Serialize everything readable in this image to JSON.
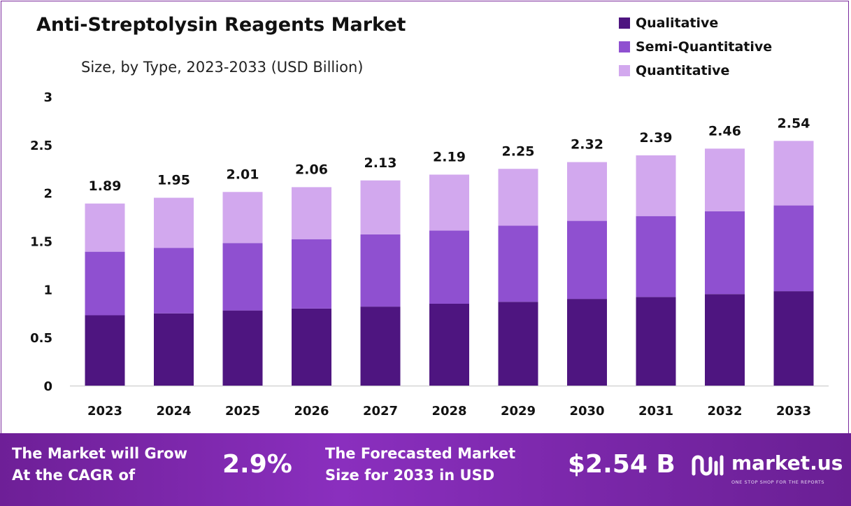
{
  "header": {
    "title": "Anti-Streptolysin Reagents Market",
    "subtitle": "Size, by Type, 2023-2033 (USD Billion)"
  },
  "legend": [
    {
      "label": "Qualitative",
      "color": "#4e1580"
    },
    {
      "label": "Semi-Quantitative",
      "color": "#8f50d0"
    },
    {
      "label": "Quantitative",
      "color": "#d2a8ee"
    }
  ],
  "chart_data": {
    "type": "bar",
    "stacked": true,
    "title": "Anti-Streptolysin Reagents Market",
    "subtitle": "Size, by Type, 2023-2033 (USD Billion)",
    "categories": [
      "2023",
      "2024",
      "2025",
      "2026",
      "2027",
      "2028",
      "2029",
      "2030",
      "2031",
      "2032",
      "2033"
    ],
    "series": [
      {
        "name": "Qualitative",
        "values": [
          0.73,
          0.75,
          0.78,
          0.8,
          0.82,
          0.85,
          0.87,
          0.9,
          0.92,
          0.95,
          0.98
        ]
      },
      {
        "name": "Semi-Quantitative",
        "values": [
          0.66,
          0.68,
          0.7,
          0.72,
          0.75,
          0.76,
          0.79,
          0.81,
          0.84,
          0.86,
          0.89
        ]
      },
      {
        "name": "Quantitative",
        "values": [
          0.5,
          0.52,
          0.53,
          0.54,
          0.56,
          0.58,
          0.59,
          0.61,
          0.63,
          0.65,
          0.67
        ]
      }
    ],
    "totals": [
      1.89,
      1.95,
      2.01,
      2.06,
      2.13,
      2.19,
      2.25,
      2.32,
      2.39,
      2.46,
      2.54
    ],
    "total_labels": [
      "1.89",
      "1.95",
      "2.01",
      "2.06",
      "2.13",
      "2.19",
      "2.25",
      "2.32",
      "2.39",
      "2.46",
      "2.54"
    ],
    "yticks": [
      0,
      0.5,
      1,
      1.5,
      2,
      2.5,
      3
    ],
    "ytick_labels": [
      "0",
      "0.5",
      "1",
      "1.5",
      "2",
      "2.5",
      "3"
    ],
    "ylim": [
      0,
      3
    ],
    "grid": false,
    "legend_position": "top-right"
  },
  "footer": {
    "cagr_label": "The Market will Grow\nAt the CAGR of",
    "cagr_value": "2.9%",
    "forecast_label": "The Forecasted Market\nSize for 2033 in USD",
    "forecast_value": "$2.54 B",
    "brand_name": "market.us",
    "brand_tagline": "ONE STOP SHOP FOR THE REPORTS"
  }
}
